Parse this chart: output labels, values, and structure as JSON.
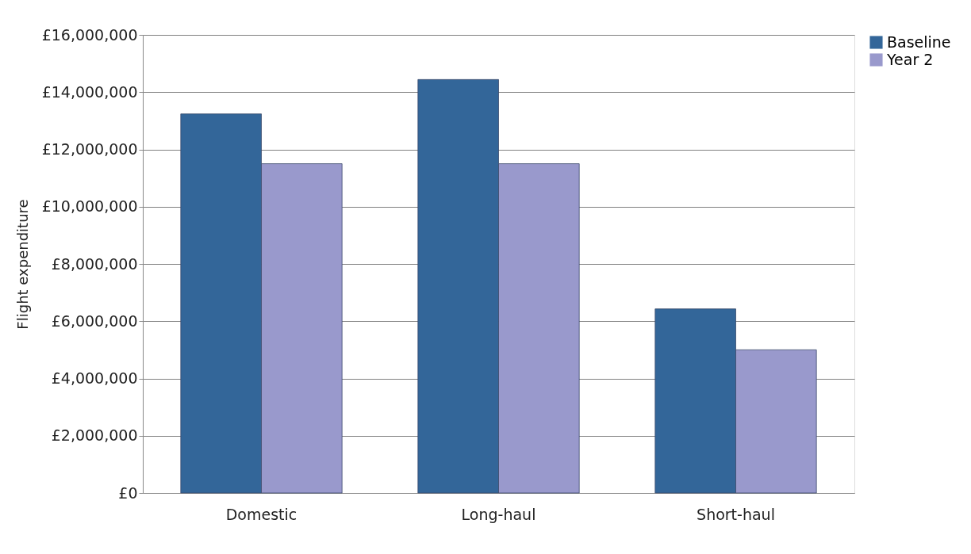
{
  "chart_data": {
    "type": "bar",
    "ylabel": "Flight expenditure",
    "categories": [
      "Domestic",
      "Long-haul",
      "Short-haul"
    ],
    "series": [
      {
        "name": "Baseline",
        "color": "#336699",
        "values": [
          13240000,
          14440000,
          6430000
        ]
      },
      {
        "name": "Year 2",
        "color": "#9999cc",
        "values": [
          11500000,
          11500000,
          5000000
        ]
      }
    ],
    "ylim": [
      0,
      16000000
    ],
    "yticks": [
      {
        "value": 0,
        "label": "£0"
      },
      {
        "value": 2000000,
        "label": "£2,000,000"
      },
      {
        "value": 4000000,
        "label": "£4,000,000"
      },
      {
        "value": 6000000,
        "label": "£6,000,000"
      },
      {
        "value": 8000000,
        "label": "£8,000,000"
      },
      {
        "value": 10000000,
        "label": "£10,000,000"
      },
      {
        "value": 12000000,
        "label": "£12,000,000"
      },
      {
        "value": 14000000,
        "label": "£14,000,000"
      },
      {
        "value": 16000000,
        "label": "£16,000,000"
      }
    ],
    "grid": "y",
    "legend": "right"
  }
}
